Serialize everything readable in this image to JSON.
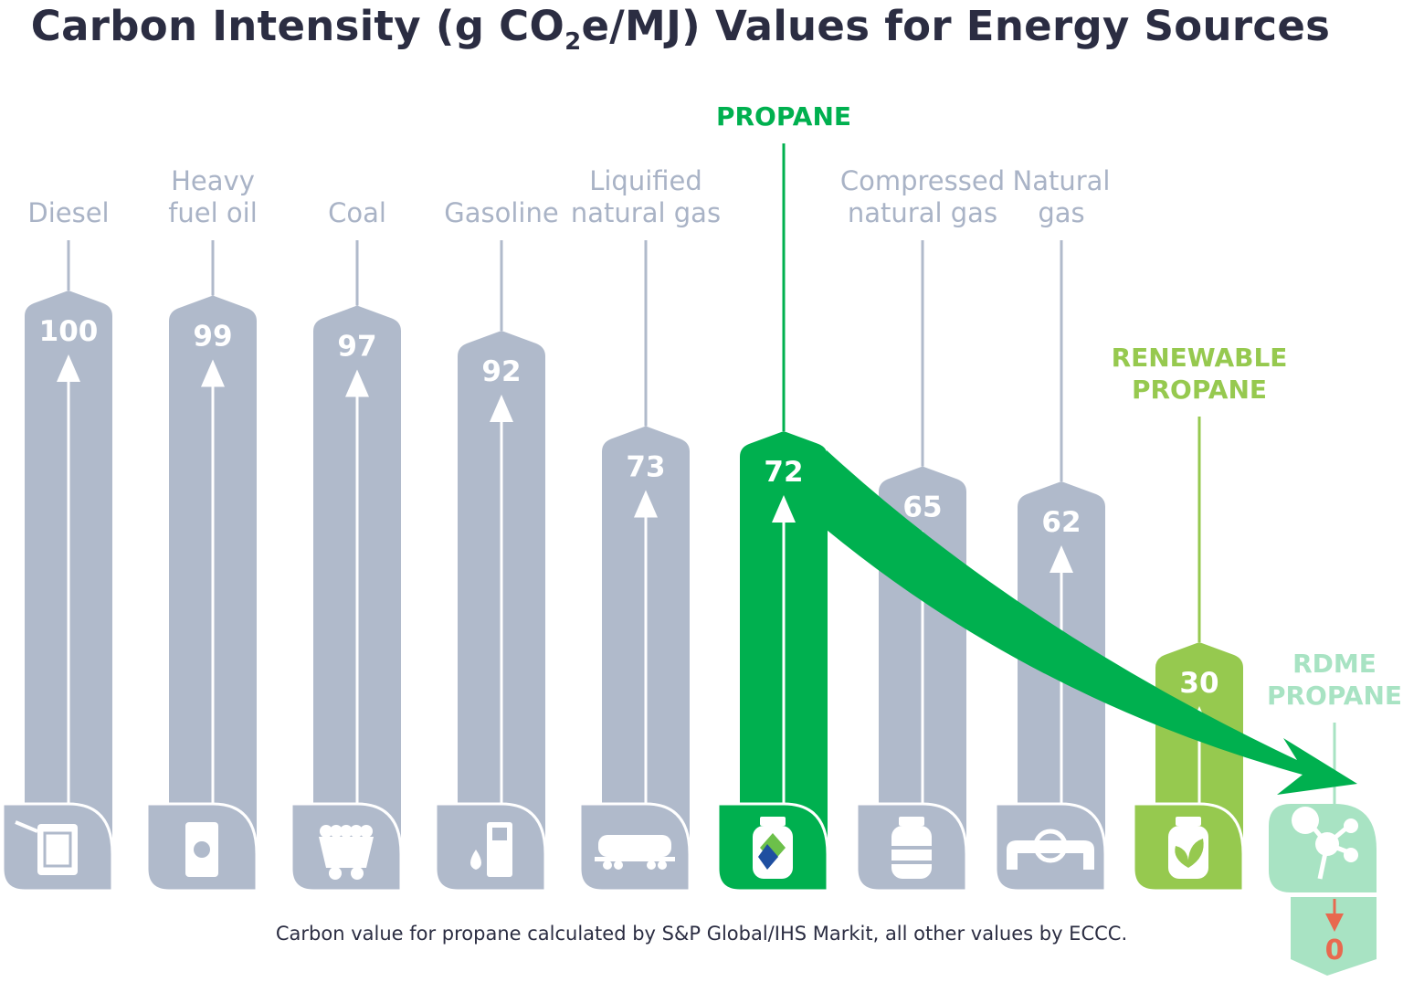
{
  "title": {
    "prefix": "Carbon Intensity (g CO",
    "subscript": "2",
    "suffix": "e/MJ) Values for Energy Sources"
  },
  "footnote": "Carbon value for propane calculated by S&P Global/IHS Markit, all other values by ECCC.",
  "colors": {
    "gray": "#b0bacb",
    "gray_label": "#a9b3c6",
    "propane": "#00b04f",
    "renewable": "#96c94f",
    "rdme": "#a8e3c3",
    "rdme_arrow": "#e8694f",
    "title": "#2b2d42"
  },
  "chart_data": {
    "type": "bar",
    "title": "Carbon Intensity (g CO2e/MJ) Values for Energy Sources",
    "unit": "g CO2e/MJ",
    "categories": [
      "Diesel",
      "Heavy fuel oil",
      "Coal",
      "Gasoline",
      "Liquified natural gas",
      "PROPANE",
      "Compressed natural gas",
      "Natural gas",
      "RENEWABLE PROPANE",
      "RDME PROPANE"
    ],
    "label_lines": [
      [
        "Diesel"
      ],
      [
        "Heavy",
        "fuel oil"
      ],
      [
        "Coal"
      ],
      [
        "Gasoline"
      ],
      [
        "Liquified",
        "natural gas"
      ],
      [
        "PROPANE"
      ],
      [
        "Compressed",
        "natural gas"
      ],
      [
        "Natural",
        "gas"
      ],
      [
        "RENEWABLE",
        "PROPANE"
      ],
      [
        "RDME",
        "PROPANE"
      ]
    ],
    "values": [
      100,
      99,
      97,
      92,
      73,
      72,
      65,
      62,
      30,
      0
    ],
    "value_labels": [
      "100",
      "99",
      "97",
      "92",
      "73",
      "72",
      "65",
      "62",
      "30",
      "0"
    ],
    "icons": [
      "jerry-can-icon",
      "oil-barrel-icon",
      "coal-cart-icon",
      "gas-pump-icon",
      "tanker-railcar-icon",
      "propane-tank-icon",
      "gas-cylinder-icon",
      "pipeline-valve-icon",
      "renewable-propane-tank-icon",
      "molecule-icon"
    ],
    "bar_colors": [
      "#b0bacb",
      "#b0bacb",
      "#b0bacb",
      "#b0bacb",
      "#b0bacb",
      "#00b04f",
      "#b0bacb",
      "#b0bacb",
      "#96c94f",
      "#a8e3c3"
    ],
    "label_colors": [
      "#a9b3c6",
      "#a9b3c6",
      "#a9b3c6",
      "#a9b3c6",
      "#a9b3c6",
      "#00b04f",
      "#a9b3c6",
      "#a9b3c6",
      "#96c94f",
      "#a8e3c3"
    ],
    "annotation": "arrow from PROPANE to RDME PROPANE"
  }
}
